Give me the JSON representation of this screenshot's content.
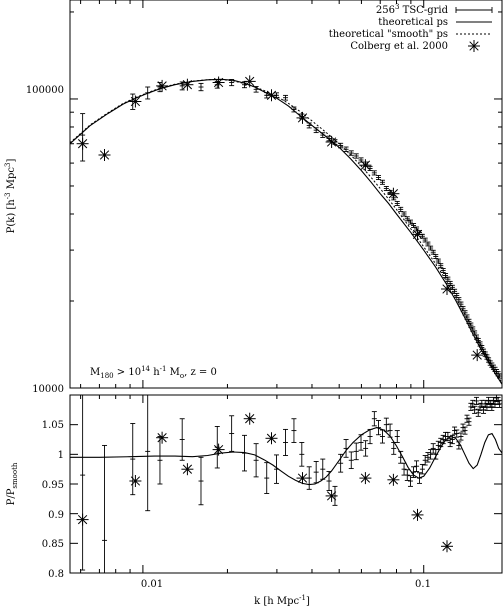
{
  "chart_data": [
    {
      "type": "line",
      "xlabel": "",
      "ylabel": "P(k) [h⁻³ Mpc³]",
      "xscale": "log",
      "yscale": "log",
      "xlim": [
        0.0055,
        0.19
      ],
      "ylim": [
        10000,
        220000
      ],
      "yticks": [
        {
          "value": 10000,
          "label": "10000"
        },
        {
          "value": 100000,
          "label": "100000"
        }
      ],
      "legend": {
        "placement": "top-right",
        "entries": [
          "256³ TSC-grid",
          "theoretical ps",
          "theoretical \"smooth\" ps",
          "Colberg et al. 2000"
        ]
      },
      "annotation": "M₁₈₀ > 10¹⁴ h⁻¹ M☉, z = 0",
      "series": [
        {
          "name": "256³ TSC-grid",
          "style": "points-errorbars",
          "x": [
            0.0061,
            0.0092,
            0.0104,
            0.0115,
            0.0138,
            0.0161,
            0.0184,
            0.0207,
            0.023,
            0.0253,
            0.0276,
            0.0299,
            0.0322,
            0.0345,
            0.0368,
            0.0391,
            0.0414,
            0.0437,
            0.046,
            0.0483,
            0.0506,
            0.0529,
            0.0552,
            0.0575,
            0.0598,
            0.0621,
            0.0644,
            0.0667,
            0.069,
            0.0713,
            0.0736,
            0.0759,
            0.0782,
            0.0805,
            0.0828,
            0.0851,
            0.0874,
            0.0897,
            0.092,
            0.0943,
            0.0966,
            0.0989,
            0.1012,
            0.1035,
            0.1058,
            0.1081,
            0.1104,
            0.1127,
            0.115,
            0.1173,
            0.1196,
            0.1219,
            0.1242,
            0.1265,
            0.1288,
            0.1311,
            0.1334,
            0.1357,
            0.138,
            0.1403,
            0.1426,
            0.1449,
            0.1472,
            0.1495,
            0.1518,
            0.1541,
            0.1564,
            0.1587,
            0.161,
            0.1633,
            0.1656,
            0.1679,
            0.1702,
            0.1725,
            0.1748,
            0.1771,
            0.1794,
            0.1817,
            0.184,
            0.1863
          ],
          "y": [
            75000,
            98000,
            105000,
            110000,
            111000,
            110000,
            112000,
            114000,
            112000,
            108000,
            103000,
            103000,
            101000,
            92000,
            87000,
            81000,
            78000,
            75000,
            73000,
            71000,
            69000,
            67000,
            65000,
            63500,
            61500,
            59500,
            57500,
            55500,
            53500,
            51500,
            49000,
            47500,
            45500,
            43500,
            41500,
            40000,
            38500,
            37500,
            36500,
            35500,
            34500,
            33500,
            32500,
            31500,
            30500,
            29500,
            28500,
            27500,
            26500,
            25500,
            24500,
            23800,
            23000,
            22300,
            21600,
            20900,
            20200,
            19500,
            18800,
            18200,
            17600,
            17000,
            16500,
            16000,
            15500,
            15000,
            14600,
            14200,
            13800,
            13400,
            13100,
            12800,
            12500,
            12200,
            12000,
            11800,
            11600,
            11400,
            11200,
            11000
          ],
          "yerr": [
            14000,
            6000,
            5000,
            4000,
            3500,
            3200,
            3000,
            2800,
            2600,
            2400,
            2200,
            2000,
            1900,
            1800,
            1700,
            1600,
            1500,
            1400,
            1350,
            1300,
            1250,
            1200,
            1150,
            1100,
            1050,
            1000,
            960,
            920,
            880,
            840,
            800,
            770,
            740,
            710,
            680,
            650,
            620,
            600,
            580,
            560,
            540,
            520,
            500,
            480,
            460,
            450,
            440,
            430,
            420,
            410,
            400,
            390,
            380,
            370,
            360,
            350,
            340,
            330,
            320,
            310,
            300,
            290,
            280,
            270,
            260,
            250,
            245,
            240,
            235,
            230,
            225,
            220,
            215,
            210,
            205,
            200,
            195,
            190,
            185,
            180
          ]
        },
        {
          "name": "theoretical ps",
          "style": "solid",
          "x": [
            0.0055,
            0.0065,
            0.0075,
            0.0085,
            0.0095,
            0.0105,
            0.0115,
            0.013,
            0.015,
            0.017,
            0.019,
            0.021,
            0.023,
            0.025,
            0.027,
            0.03,
            0.033,
            0.036,
            0.04,
            0.045,
            0.05,
            0.055,
            0.06,
            0.065,
            0.07,
            0.075,
            0.08,
            0.09,
            0.1,
            0.11,
            0.12,
            0.13,
            0.14,
            0.15,
            0.16,
            0.17,
            0.18,
            0.19
          ],
          "y": [
            70000,
            81000,
            89000,
            96000,
            101000,
            105000,
            108500,
            112000,
            115000,
            116500,
            117000,
            116000,
            113500,
            110000,
            106000,
            100500,
            94500,
            88000,
            81000,
            74000,
            68000,
            62000,
            56500,
            51500,
            47000,
            43500,
            40000,
            34500,
            30000,
            26300,
            23000,
            20100,
            17500,
            15300,
            13600,
            12300,
            11200,
            10300
          ]
        },
        {
          "name": "theoretical \"smooth\" ps",
          "style": "dotted",
          "x": [
            0.0055,
            0.0065,
            0.0075,
            0.0085,
            0.0095,
            0.0105,
            0.0115,
            0.013,
            0.015,
            0.017,
            0.019,
            0.021,
            0.023,
            0.025,
            0.027,
            0.03,
            0.033,
            0.036,
            0.04,
            0.045,
            0.05,
            0.055,
            0.06,
            0.065,
            0.07,
            0.075,
            0.08,
            0.09,
            0.1,
            0.11,
            0.12,
            0.13,
            0.14,
            0.15,
            0.16,
            0.17,
            0.18,
            0.19
          ],
          "y": [
            70500,
            81500,
            89500,
            96500,
            101500,
            105500,
            109000,
            112500,
            115200,
            116600,
            116800,
            115500,
            113000,
            110200,
            107000,
            102000,
            96500,
            91000,
            84000,
            76500,
            70000,
            64000,
            58500,
            53500,
            49000,
            45000,
            41500,
            35500,
            30800,
            27000,
            23600,
            20600,
            18000,
            15800,
            14000,
            12600,
            11400,
            10400
          ]
        },
        {
          "name": "Colberg et al. 2000",
          "style": "stars",
          "x": [
            0.0061,
            0.0073,
            0.0094,
            0.0117,
            0.0144,
            0.0186,
            0.024,
            0.0287,
            0.037,
            0.047,
            0.062,
            0.078,
            0.095,
            0.121,
            0.155
          ],
          "y": [
            70000,
            64000,
            98000,
            111000,
            112000,
            114000,
            115000,
            103000,
            86000,
            71000,
            59000,
            47000,
            34000,
            22000,
            13000
          ]
        }
      ]
    },
    {
      "type": "line",
      "xlabel": "k [h Mpc⁻¹]",
      "ylabel": "P/P_smooth",
      "xscale": "log",
      "xlim": [
        0.0055,
        0.19
      ],
      "ylim": [
        0.8,
        1.1
      ],
      "xticks": [
        {
          "value": 0.01,
          "label": "0.01"
        },
        {
          "value": 0.1,
          "label": "0.1"
        }
      ],
      "yticks": [
        {
          "value": 0.8,
          "label": "0.8"
        },
        {
          "value": 0.85,
          "label": "0.85"
        },
        {
          "value": 0.9,
          "label": "0.9"
        },
        {
          "value": 0.95,
          "label": "0.95"
        },
        {
          "value": 1.0,
          "label": "1"
        },
        {
          "value": 1.05,
          "label": "1.05"
        }
      ],
      "series": [
        {
          "name": "256³ TSC-grid",
          "style": "points-errorbars",
          "x": [
            0.0061,
            0.0073,
            0.0092,
            0.0104,
            0.0115,
            0.0138,
            0.0161,
            0.0184,
            0.0207,
            0.023,
            0.0253,
            0.0276,
            0.0299,
            0.0322,
            0.0345,
            0.0368,
            0.0391,
            0.0414,
            0.0437,
            0.046,
            0.0483,
            0.0506,
            0.0529,
            0.0552,
            0.0575,
            0.0598,
            0.0621,
            0.0644,
            0.0667,
            0.069,
            0.0713,
            0.0736,
            0.0759,
            0.0782,
            0.0805,
            0.0828,
            0.0851,
            0.0874,
            0.0897,
            0.092,
            0.0943,
            0.0966,
            0.0989,
            0.1012,
            0.1035,
            0.1058,
            0.1081,
            0.1104,
            0.1127,
            0.115,
            0.1173,
            0.1196,
            0.1219,
            0.1242,
            0.1265,
            0.1288,
            0.1311,
            0.1334,
            0.1357,
            0.138,
            0.1403,
            0.1426,
            0.1449,
            0.1472,
            0.1495,
            0.1518,
            0.1541,
            0.1564,
            0.1587,
            0.161,
            0.1633,
            0.1656,
            0.1679,
            0.1702,
            0.1725,
            0.1748,
            0.1771,
            0.1794,
            0.1817,
            0.184,
            0.1863
          ],
          "y": [
            0.965,
            0.855,
            0.992,
            1.005,
            0.99,
            1.025,
            0.955,
            1.012,
            1.035,
            1.002,
            0.99,
            0.96,
            0.975,
            1.02,
            1.04,
            1.0,
            0.96,
            0.97,
            0.975,
            0.955,
            0.93,
            0.985,
            1.01,
            0.99,
            1.005,
            1.02,
            1.01,
            1.03,
            1.06,
            1.045,
            1.03,
            1.05,
            1.04,
            1.01,
            1.03,
            0.995,
            0.975,
            0.965,
            0.955,
            0.97,
            0.98,
            0.96,
            0.975,
            0.99,
            0.995,
            1.0,
            1.01,
            1.0,
            1.015,
            1.02,
            1.025,
            1.03,
            1.03,
            1.02,
            1.025,
            1.04,
            1.035,
            1.015,
            1.03,
            1.045,
            1.04,
            1.06,
            1.055,
            1.08,
            1.085,
            1.075,
            1.09,
            1.07,
            1.08,
            1.085,
            1.075,
            1.085,
            1.08,
            1.09,
            1.085,
            1.08,
            1.09,
            1.085,
            1.095,
            1.09,
            1.085
          ],
          "yerr": [
            0.16,
            0.16,
            0.06,
            0.1,
            0.04,
            0.035,
            0.04,
            0.035,
            0.03,
            0.03,
            0.028,
            0.026,
            0.024,
            0.022,
            0.02,
            0.02,
            0.019,
            0.018,
            0.017,
            0.016,
            0.016,
            0.015,
            0.015,
            0.014,
            0.014,
            0.013,
            0.013,
            0.012,
            0.012,
            0.012,
            0.011,
            0.011,
            0.011,
            0.01,
            0.01,
            0.01,
            0.01,
            0.009,
            0.009,
            0.009,
            0.009,
            0.009,
            0.008,
            0.008,
            0.008,
            0.008,
            0.008,
            0.008,
            0.007,
            0.007,
            0.007,
            0.007,
            0.007,
            0.007,
            0.007,
            0.006,
            0.006,
            0.006,
            0.006,
            0.006,
            0.006,
            0.006,
            0.006,
            0.006,
            0.006,
            0.006,
            0.006,
            0.006,
            0.006,
            0.006,
            0.006,
            0.006,
            0.006,
            0.006,
            0.006,
            0.006,
            0.006,
            0.006,
            0.006,
            0.006,
            0.006
          ]
        },
        {
          "name": "theoretical ps",
          "style": "solid",
          "x": [
            0.0055,
            0.007,
            0.009,
            0.011,
            0.013,
            0.015,
            0.017,
            0.019,
            0.021,
            0.023,
            0.025,
            0.027,
            0.029,
            0.031,
            0.033,
            0.035,
            0.037,
            0.039,
            0.041,
            0.043,
            0.045,
            0.047,
            0.05,
            0.053,
            0.056,
            0.06,
            0.064,
            0.068,
            0.072,
            0.076,
            0.08,
            0.084,
            0.088,
            0.092,
            0.096,
            0.1,
            0.105,
            0.11,
            0.115,
            0.12,
            0.125,
            0.13,
            0.135,
            0.14,
            0.145,
            0.15,
            0.155,
            0.16,
            0.165,
            0.17,
            0.175,
            0.18,
            0.185,
            0.19
          ],
          "y": [
            0.995,
            0.995,
            0.996,
            0.997,
            0.997,
            0.996,
            0.998,
            1.002,
            1.004,
            1.003,
            0.999,
            0.991,
            0.982,
            0.972,
            0.963,
            0.956,
            0.951,
            0.949,
            0.95,
            0.955,
            0.962,
            0.972,
            0.99,
            1.007,
            1.02,
            1.033,
            1.041,
            1.045,
            1.041,
            1.03,
            1.014,
            0.996,
            0.978,
            0.965,
            0.96,
            0.963,
            0.977,
            0.995,
            1.012,
            1.025,
            1.03,
            1.027,
            1.016,
            1.0,
            0.985,
            0.976,
            0.982,
            1.0,
            1.02,
            1.033,
            1.035,
            1.025,
            1.01,
            1.002
          ]
        },
        {
          "name": "Colberg et al. 2000",
          "style": "stars",
          "x": [
            0.0061,
            0.0094,
            0.0117,
            0.0144,
            0.0186,
            0.024,
            0.0287,
            0.037,
            0.047,
            0.062,
            0.078,
            0.095,
            0.121
          ],
          "y": [
            0.89,
            0.955,
            1.028,
            0.975,
            1.008,
            1.06,
            1.027,
            0.96,
            0.93,
            0.96,
            0.957,
            0.898,
            0.845
          ]
        }
      ]
    }
  ]
}
